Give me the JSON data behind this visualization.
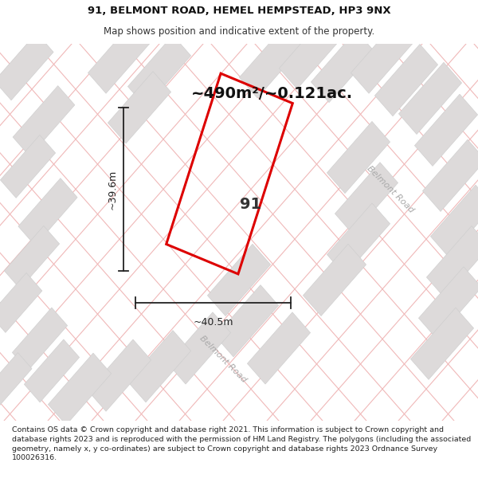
{
  "title_line1": "91, BELMONT ROAD, HEMEL HEMPSTEAD, HP3 9NX",
  "title_line2": "Map shows position and indicative extent of the property.",
  "area_text": "~490m²/~0.121ac.",
  "label_91": "91",
  "dim_width": "~40.5m",
  "dim_height": "~39.6m",
  "road_label_lower": "Belmont Road",
  "road_label_right": "Belmont Road",
  "footer_text": "Contains OS data © Crown copyright and database right 2021. This information is subject to Crown copyright and database rights 2023 and is reproduced with the permission of HM Land Registry. The polygons (including the associated geometry, namely x, y co-ordinates) are subject to Crown copyright and database rights 2023 Ordnance Survey 100026316.",
  "map_bg": "#f5f3f3",
  "plot_outline_color": "#dd0000",
  "grid_line_color": "#f0b8b8",
  "block_fill_color": "#dddada",
  "block_edge_color": "#cccccc",
  "road_bg_color": "#e8e4e4",
  "footer_bg": "#ffffff",
  "title_bg": "#ffffff",
  "dim_line_color": "#222222",
  "label_color": "#333333",
  "road_text_color": "#aaaaaa",
  "area_text_color": "#111111"
}
